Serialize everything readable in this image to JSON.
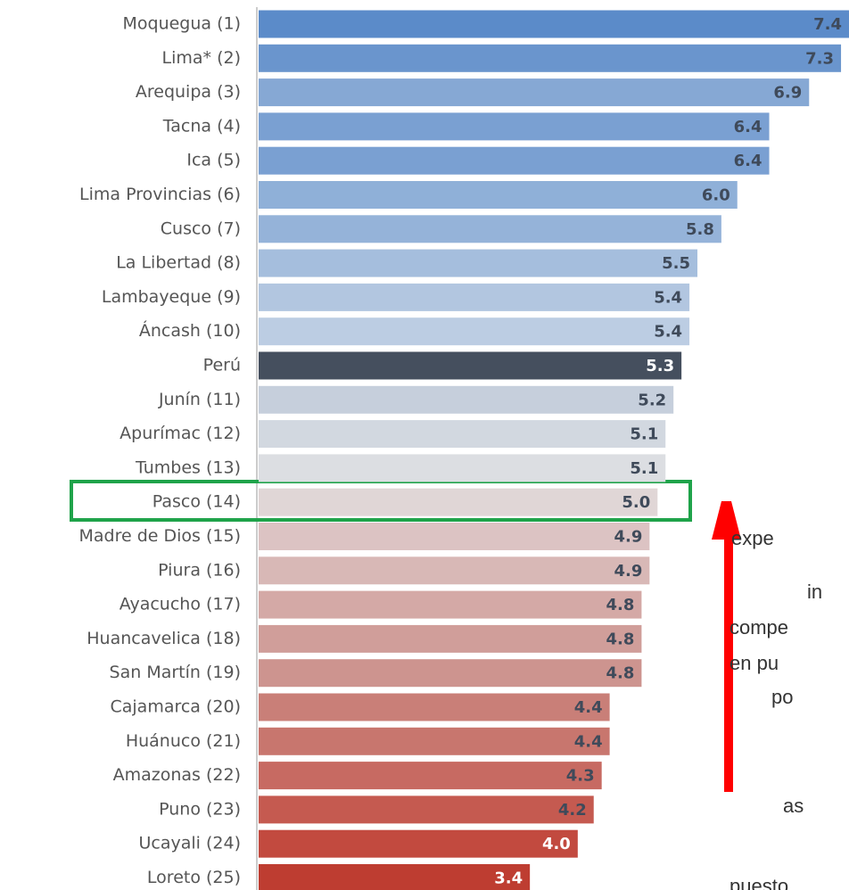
{
  "chart_data": {
    "type": "bar",
    "orientation": "horizontal",
    "categories": [
      "Moquegua (1)",
      "Lima* (2)",
      "Arequipa (3)",
      "Tacna (4)",
      "Ica (5)",
      "Lima Provincias (6)",
      "Cusco (7)",
      "La Libertad (8)",
      "Lambayeque (9)",
      "Áncash (10)",
      "Perú",
      "Junín (11)",
      "Apurímac (12)",
      "Tumbes (13)",
      "Pasco (14)",
      "Madre de Dios (15)",
      "Piura (16)",
      "Ayacucho (17)",
      "Huancavelica (18)",
      "San Martín (19)",
      "Cajamarca (20)",
      "Huánuco (21)",
      "Amazonas (22)",
      "Puno (23)",
      "Ucayali (24)",
      "Loreto (25)"
    ],
    "values": [
      7.4,
      7.3,
      6.9,
      6.4,
      6.4,
      6.0,
      5.8,
      5.5,
      5.4,
      5.4,
      5.3,
      5.2,
      5.1,
      5.1,
      5.0,
      4.9,
      4.9,
      4.8,
      4.8,
      4.8,
      4.4,
      4.4,
      4.3,
      4.2,
      4.0,
      3.4
    ],
    "value_labels": [
      "7.4",
      "7.3",
      "6.9",
      "6.4",
      "6.4",
      "6.0",
      "5.8",
      "5.5",
      "5.4",
      "5.4",
      "5.3",
      "5.2",
      "5.1",
      "5.1",
      "5.0",
      "4.9",
      "4.9",
      "4.8",
      "4.8",
      "4.8",
      "4.4",
      "4.4",
      "4.3",
      "4.2",
      "4.0",
      "3.4"
    ],
    "colors": [
      "#5b8bc9",
      "#6a95cd",
      "#86a8d4",
      "#7aa0d2",
      "#7aa0d2",
      "#8fb0d8",
      "#95b3d9",
      "#a5bedd",
      "#b2c6e0",
      "#bccde3",
      "#454f5e",
      "#c6cfdc",
      "#d2d8e0",
      "#dcdee2",
      "#e0d6d6",
      "#dcc3c3",
      "#d8b8b6",
      "#d4a9a6",
      "#d09e9a",
      "#cd948f",
      "#c97f78",
      "#c8766e",
      "#c76a62",
      "#c55a50",
      "#c24a3f",
      "#be3d31"
    ],
    "xlim": [
      0,
      7.4
    ],
    "annotations": [
      "expe",
      "in",
      "compe",
      "en pu",
      "po",
      "as",
      "puesto"
    ]
  }
}
